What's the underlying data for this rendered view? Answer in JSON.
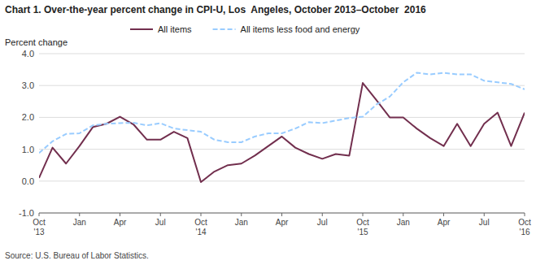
{
  "chart_data": {
    "type": "line",
    "title": "Chart 1. Over-the-year percent change in CPI-U, Los  Angeles, October 2013–October  2016",
    "ylabel": "Percent change",
    "source": "Source: U.S. Bureau of Labor Statistics.",
    "categories": [
      "Oct\n'13",
      null,
      null,
      "Jan",
      null,
      null,
      "Apr",
      null,
      null,
      "Jul",
      null,
      null,
      "Oct\n'14",
      null,
      null,
      "Jan",
      null,
      null,
      "Apr",
      null,
      null,
      "Jul",
      null,
      null,
      "Oct\n'15",
      null,
      null,
      "Jan",
      null,
      null,
      "Apr",
      null,
      null,
      "Jul",
      null,
      null,
      "Oct\n'16"
    ],
    "series": [
      {
        "name": "All items",
        "color": "#722F4E",
        "line_style": "solid",
        "values": [
          0.1,
          1.05,
          0.55,
          1.1,
          1.7,
          1.8,
          2.02,
          1.78,
          1.3,
          1.3,
          1.55,
          1.35,
          -0.03,
          0.3,
          0.5,
          0.55,
          0.8,
          1.1,
          1.4,
          1.05,
          0.85,
          0.7,
          0.85,
          0.8,
          3.08,
          2.55,
          2.0,
          2.0,
          1.65,
          1.35,
          1.1,
          1.8,
          1.1,
          1.8,
          2.15,
          1.1,
          2.15
        ]
      },
      {
        "name": "All items less food and energy",
        "color": "#99CCFF",
        "line_style": "dashed",
        "values": [
          0.88,
          1.25,
          1.48,
          1.5,
          1.75,
          1.8,
          1.82,
          1.83,
          1.75,
          1.82,
          1.65,
          1.6,
          1.55,
          1.3,
          1.22,
          1.22,
          1.4,
          1.5,
          1.5,
          1.65,
          1.85,
          1.82,
          1.9,
          1.98,
          2.02,
          2.4,
          2.65,
          3.1,
          3.4,
          3.35,
          3.4,
          3.35,
          3.35,
          3.15,
          3.1,
          3.05,
          2.88
        ]
      }
    ],
    "ylim": [
      -1.0,
      4.0
    ],
    "yticks": [
      {
        "value": -1.0,
        "label": "-1.0"
      },
      {
        "value": 0.0,
        "label": "0.0"
      },
      {
        "value": 1.0,
        "label": "1.0"
      },
      {
        "value": 2.0,
        "label": "2.0"
      },
      {
        "value": 3.0,
        "label": "3.0"
      },
      {
        "value": 4.0,
        "label": "4.0"
      }
    ],
    "grid": true,
    "legend": "top"
  }
}
